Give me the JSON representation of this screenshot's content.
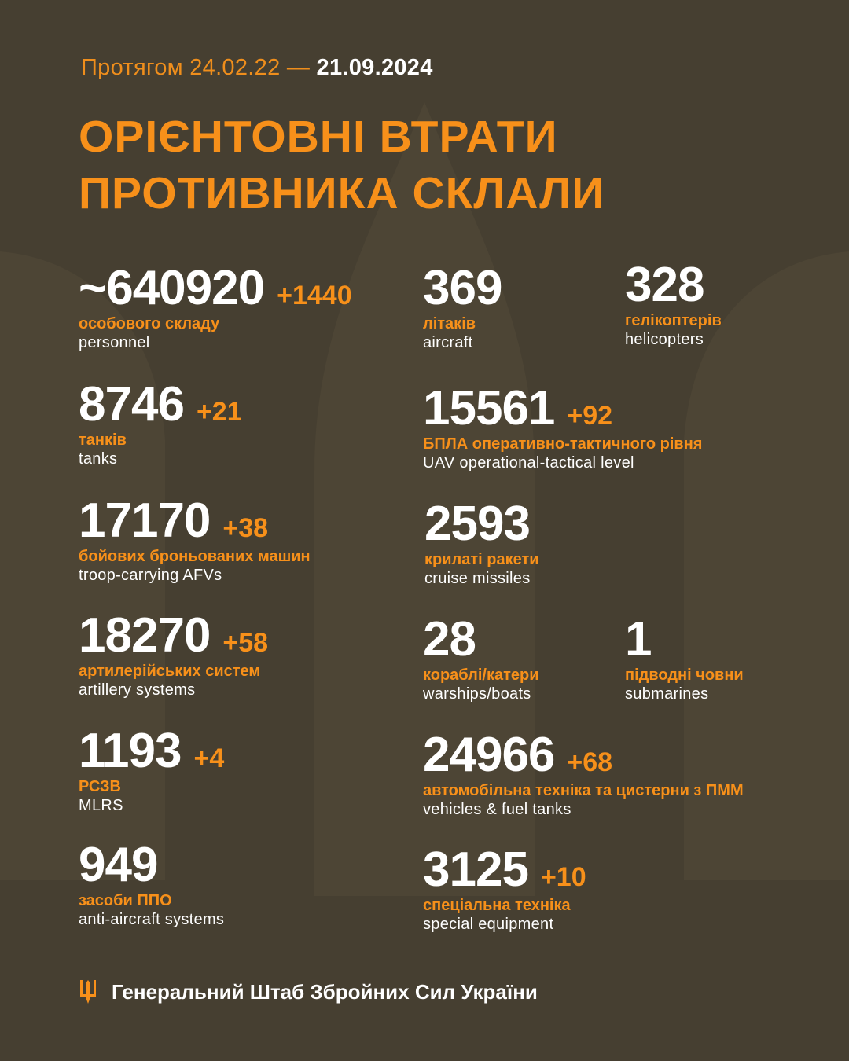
{
  "period": {
    "prefix": "Протягом 24.02.22 —",
    "date": "21.09.2024"
  },
  "title": {
    "line1": "ОРІЄНТОВНІ ВТРАТИ",
    "line2": "ПРОТИВНИКА СКЛАЛИ"
  },
  "colors": {
    "background": "#463f31",
    "accent": "#f7901a",
    "text": "#ffffff"
  },
  "stats": {
    "personnel": {
      "value": "~640920",
      "delta": "+1440",
      "uk": "особового складу",
      "en": "personnel"
    },
    "aircraft": {
      "value": "369",
      "uk": "літаків",
      "en": "aircraft"
    },
    "helicopters": {
      "value": "328",
      "uk": "гелікоптерів",
      "en": "helicopters"
    },
    "tanks": {
      "value": "8746",
      "delta": "+21",
      "uk": "танків",
      "en": "tanks"
    },
    "uav": {
      "value": "15561",
      "delta": "+92",
      "uk": "БПЛА оперативно-тактичного рівня",
      "en": "UAV operational-tactical level"
    },
    "afv": {
      "value": "17170",
      "delta": "+38",
      "uk": "бойових броньованих машин",
      "en": "troop-carrying AFVs"
    },
    "cruise": {
      "value": "2593",
      "uk": "крилаті ракети",
      "en": "cruise missiles"
    },
    "artillery": {
      "value": "18270",
      "delta": "+58",
      "uk": "артилерійських систем",
      "en": "artillery systems"
    },
    "warships": {
      "value": "28",
      "uk": "кораблі/катери",
      "en": "warships/boats"
    },
    "submarines": {
      "value": "1",
      "uk": "підводні човни",
      "en": "submarines"
    },
    "mlrs": {
      "value": "1193",
      "delta": "+4",
      "uk": "РСЗВ",
      "en": "MLRS"
    },
    "vehicles": {
      "value": "24966",
      "delta": "+68",
      "uk": "автомобільна техніка та цистерни з ПММ",
      "en": "vehicles & fuel tanks"
    },
    "antiaircraft": {
      "value": "949",
      "uk": "засоби ППО",
      "en": "anti-aircraft systems"
    },
    "special": {
      "value": "3125",
      "delta": "+10",
      "uk": "спеціальна техніка",
      "en": "special equipment"
    }
  },
  "footer": {
    "icon": "trident-icon",
    "text": "Генеральний Штаб Збройних Сил України"
  }
}
